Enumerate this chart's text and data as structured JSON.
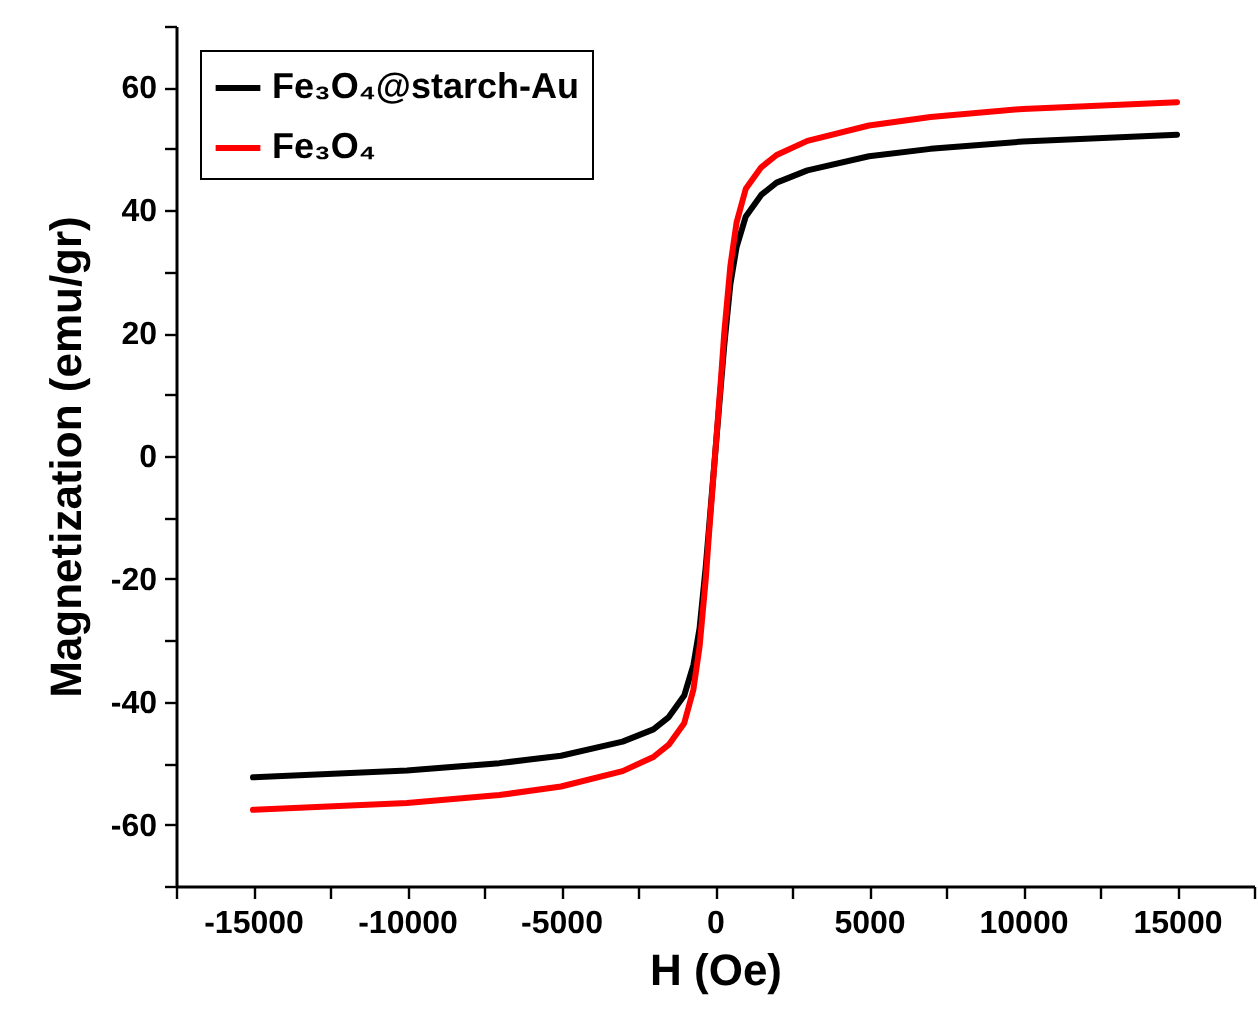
{
  "chart_data": {
    "type": "line",
    "xlabel": "H (Oe)",
    "ylabel": "Magnetization (emu/gr)",
    "xlim": [
      -17500,
      17500
    ],
    "ylim": [
      -70,
      70
    ],
    "xticks": [
      {
        "value": -17500,
        "label": null
      },
      -15000,
      {
        "value": -12500,
        "label": null
      },
      -10000,
      {
        "value": -7500,
        "label": null
      },
      -5000,
      {
        "value": -2500,
        "label": null
      },
      0,
      {
        "value": 2500,
        "label": null
      },
      5000,
      {
        "value": 7500,
        "label": null
      },
      10000,
      {
        "value": 12500,
        "label": null
      },
      15000,
      {
        "value": 17500,
        "label": null
      }
    ],
    "yticks": [
      {
        "value": -70,
        "label": null
      },
      -60,
      {
        "value": -50,
        "label": null
      },
      -40,
      {
        "value": -30,
        "label": null
      },
      -20,
      {
        "value": -10,
        "label": null
      },
      0,
      {
        "value": 10,
        "label": null
      },
      20,
      {
        "value": 30,
        "label": null
      },
      40,
      {
        "value": 50,
        "label": null
      },
      60,
      {
        "value": 70,
        "label": null
      }
    ],
    "x": [
      -15000,
      -10000,
      -7000,
      -5000,
      -3000,
      -2000,
      -1500,
      -1000,
      -700,
      -500,
      -300,
      -200,
      -100,
      0,
      100,
      200,
      300,
      500,
      700,
      1000,
      1500,
      2000,
      3000,
      5000,
      7000,
      10000,
      15000
    ],
    "series": [
      {
        "name": "Fe₃O₄@starch-Au",
        "color": "#000000",
        "values": [
          -52.3,
          -51.2,
          -50,
          -48.8,
          -46.5,
          -44.5,
          -42.5,
          -39,
          -34,
          -28,
          -18,
          -12,
          -6,
          0,
          6,
          12,
          18,
          28,
          34,
          39,
          42.5,
          44.5,
          46.5,
          48.8,
          50,
          51.2,
          52.3
        ]
      },
      {
        "name": "Fe₃O₄",
        "color": "#ff0000",
        "values": [
          -57.6,
          -56.5,
          -55.2,
          -53.8,
          -51.3,
          -49,
          -47,
          -43.5,
          -38,
          -31,
          -20,
          -13,
          -6.5,
          0,
          6.5,
          13,
          20,
          31,
          38,
          43.5,
          47,
          49,
          51.3,
          53.8,
          55.2,
          56.5,
          57.6
        ]
      }
    ],
    "grid": false,
    "legend": "top left",
    "marker": "none",
    "line_style": "solid"
  }
}
